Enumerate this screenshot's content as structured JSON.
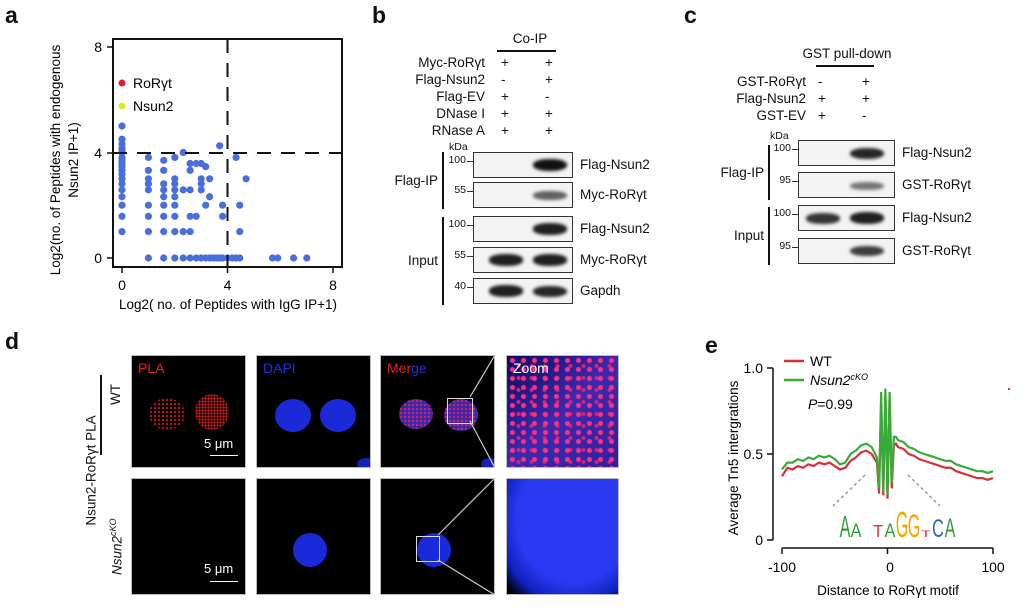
{
  "panels": {
    "a": "a",
    "b": "b",
    "c": "c",
    "d": "d",
    "e": "e"
  },
  "chart_data": [
    {
      "type": "scatter",
      "panel": "a",
      "xlabel": "Log2( no. of Peptides with IgG IP+1)",
      "ylabel_line1": "Log2(no. of Peptides with endogenous",
      "ylabel_line2": "Nsun2 IP+1)",
      "xlim": [
        0,
        8
      ],
      "ylim": [
        0,
        8
      ],
      "xticks": [
        "0",
        "4",
        "8"
      ],
      "yticks": [
        "0",
        "4",
        "8"
      ],
      "thresholds": {
        "x": 4,
        "y": 4
      },
      "legend": [
        {
          "label": "RoRγt",
          "color": "#e0202a"
        },
        {
          "label": "Nsun2",
          "color": "#e6e632"
        }
      ],
      "point_color": "#4a6fdc",
      "points": [
        [
          0,
          1
        ],
        [
          0,
          1.58
        ],
        [
          0,
          2
        ],
        [
          0,
          2.32
        ],
        [
          0,
          2.58
        ],
        [
          0,
          2.81
        ],
        [
          0,
          3
        ],
        [
          0,
          3.17
        ],
        [
          0,
          3.32
        ],
        [
          0,
          3.46
        ],
        [
          0,
          3.58
        ],
        [
          0,
          3.7
        ],
        [
          0,
          3.81
        ],
        [
          0,
          4
        ],
        [
          0,
          4.09
        ],
        [
          0,
          4.17
        ],
        [
          0,
          4.32
        ],
        [
          0,
          4.5
        ],
        [
          0,
          5
        ],
        [
          1,
          0
        ],
        [
          1,
          1
        ],
        [
          1,
          1.58
        ],
        [
          1,
          2
        ],
        [
          1,
          2.58
        ],
        [
          1,
          2.81
        ],
        [
          1,
          3
        ],
        [
          1,
          3.32
        ],
        [
          1,
          3.81
        ],
        [
          1.58,
          0
        ],
        [
          1.58,
          1
        ],
        [
          1.58,
          1.58
        ],
        [
          1.58,
          2
        ],
        [
          1.58,
          2.32
        ],
        [
          1.58,
          2.58
        ],
        [
          1.58,
          2.81
        ],
        [
          1.58,
          3.32
        ],
        [
          1.58,
          3.7
        ],
        [
          2,
          0
        ],
        [
          2,
          1
        ],
        [
          2,
          1.58
        ],
        [
          2,
          2
        ],
        [
          2,
          2.32
        ],
        [
          2,
          2.58
        ],
        [
          2,
          2.81
        ],
        [
          2,
          3
        ],
        [
          2,
          3.81
        ],
        [
          2.32,
          0
        ],
        [
          2.32,
          1
        ],
        [
          2.32,
          2.58
        ],
        [
          2.32,
          4
        ],
        [
          2.58,
          0
        ],
        [
          2.58,
          1
        ],
        [
          2.58,
          1.58
        ],
        [
          2.58,
          2.58
        ],
        [
          2.58,
          3.32
        ],
        [
          2.58,
          3.58
        ],
        [
          2.81,
          0
        ],
        [
          2.81,
          1.58
        ],
        [
          2.81,
          3.58
        ],
        [
          3,
          0
        ],
        [
          3,
          2.58
        ],
        [
          3,
          2.81
        ],
        [
          3,
          3
        ],
        [
          3,
          3.58
        ],
        [
          3.17,
          0
        ],
        [
          3.17,
          2
        ],
        [
          3.17,
          3.46
        ],
        [
          3.32,
          0
        ],
        [
          3.32,
          2.32
        ],
        [
          3.32,
          3
        ],
        [
          3.46,
          0
        ],
        [
          3.58,
          0
        ],
        [
          3.7,
          0
        ],
        [
          3.7,
          4.25
        ],
        [
          3.81,
          0
        ],
        [
          3.81,
          1.58
        ],
        [
          3.81,
          2
        ],
        [
          4,
          0
        ],
        [
          4.17,
          0
        ],
        [
          4.32,
          0
        ],
        [
          4.32,
          3.81
        ],
        [
          4.46,
          0
        ],
        [
          4.46,
          1
        ],
        [
          4.46,
          2
        ],
        [
          4.7,
          3
        ],
        [
          5.7,
          0
        ],
        [
          5.9,
          0
        ],
        [
          6.5,
          0
        ],
        [
          7,
          0
        ]
      ]
    },
    {
      "type": "line",
      "panel": "e",
      "xlabel": "Distance to RoRγt motif",
      "ylabel": "Average Tn5 intergrations",
      "xlim": [
        -100,
        100
      ],
      "ylim": [
        0,
        1
      ],
      "xticks": [
        "-100",
        "0",
        "100"
      ],
      "yticks": [
        "0",
        "0.5",
        "1.0"
      ],
      "annotation": {
        "p_label": "P",
        "p_value": "=0.99"
      },
      "motif": {
        "letters": [
          "A",
          "A",
          "T",
          "A",
          "G",
          "G",
          "T",
          "C",
          "A"
        ],
        "colors": [
          "#2a9d3a",
          "#2a9d3a",
          "#e0303a",
          "#2a9d3a",
          "#f2a800",
          "#f2a800",
          "#e0303a",
          "#2a5fc0",
          "#2a9d3a"
        ]
      },
      "x": [
        -100,
        -95,
        -90,
        -85,
        -80,
        -75,
        -70,
        -65,
        -60,
        -55,
        -50,
        -45,
        -40,
        -35,
        -30,
        -25,
        -20,
        -15,
        -10,
        -8,
        -6,
        -4,
        -2,
        0,
        2,
        4,
        6,
        8,
        10,
        15,
        20,
        25,
        30,
        35,
        40,
        45,
        50,
        55,
        60,
        65,
        70,
        75,
        80,
        85,
        90,
        95,
        100
      ],
      "series": [
        {
          "name": "WT",
          "label": "WT",
          "color": "#d7303a",
          "values": [
            0.37,
            0.42,
            0.41,
            0.43,
            0.42,
            0.44,
            0.43,
            0.45,
            0.44,
            0.45,
            0.43,
            0.41,
            0.42,
            0.46,
            0.48,
            0.51,
            0.52,
            0.5,
            0.45,
            0.27,
            0.8,
            0.26,
            0.85,
            0.24,
            0.82,
            0.3,
            0.55,
            0.56,
            0.54,
            0.53,
            0.5,
            0.49,
            0.47,
            0.46,
            0.45,
            0.44,
            0.43,
            0.42,
            0.42,
            0.4,
            0.39,
            0.38,
            0.37,
            0.36,
            0.36,
            0.35,
            0.36
          ]
        },
        {
          "name": "Nsun2cKO",
          "label": "Nsun2",
          "label_sup": "cKO",
          "color": "#3aaa3a",
          "values": [
            0.41,
            0.45,
            0.45,
            0.47,
            0.46,
            0.48,
            0.47,
            0.49,
            0.48,
            0.49,
            0.47,
            0.44,
            0.45,
            0.5,
            0.52,
            0.55,
            0.56,
            0.54,
            0.48,
            0.3,
            0.86,
            0.28,
            0.88,
            0.26,
            0.86,
            0.33,
            0.6,
            0.6,
            0.58,
            0.57,
            0.54,
            0.53,
            0.51,
            0.5,
            0.49,
            0.48,
            0.47,
            0.46,
            0.46,
            0.44,
            0.43,
            0.42,
            0.41,
            0.4,
            0.4,
            0.39,
            0.4
          ]
        }
      ]
    }
  ],
  "panel_b": {
    "header": "Co-IP",
    "conditions": [
      {
        "label": "Myc-RoRγt",
        "lanes": [
          "+",
          "+"
        ]
      },
      {
        "label": "Flag-Nsun2",
        "lanes": [
          "-",
          "+"
        ]
      },
      {
        "label": "Flag-EV",
        "lanes": [
          "+",
          "-"
        ]
      },
      {
        "label": "DNase I",
        "lanes": [
          "+",
          "+"
        ]
      },
      {
        "label": "RNase A",
        "lanes": [
          "+",
          "+"
        ]
      }
    ],
    "kda": "kDa",
    "group_ip": "Flag-IP",
    "group_input": "Input",
    "blots": [
      {
        "marker": "100",
        "label": "Flag-Nsun2",
        "bands": [
          0,
          1
        ]
      },
      {
        "marker": "55",
        "label": "Myc-RoRγt",
        "bands": [
          0,
          0.45
        ]
      },
      {
        "marker": "100",
        "label": "Flag-Nsun2",
        "bands": [
          0,
          0.9
        ]
      },
      {
        "marker": "55",
        "label": "Myc-RoRγt",
        "bands": [
          0.9,
          0.9
        ]
      },
      {
        "marker": "40",
        "label": "Gapdh",
        "bands": [
          0.9,
          0.85
        ]
      }
    ]
  },
  "panel_c": {
    "header": "GST pull-down",
    "conditions": [
      {
        "label": "GST-RoRγt",
        "lanes": [
          "-",
          "+"
        ]
      },
      {
        "label": "Flag-Nsun2",
        "lanes": [
          "+",
          "+"
        ]
      },
      {
        "label": "GST-EV",
        "lanes": [
          "+",
          "-"
        ]
      }
    ],
    "kda": "kDa",
    "group_ip": "Flag-IP",
    "group_input": "Input",
    "blots": [
      {
        "marker": "100",
        "label": "Flag-Nsun2",
        "bands": [
          0,
          0.85
        ]
      },
      {
        "marker": "95",
        "label": "GST-RoRγt",
        "bands": [
          0,
          0.3
        ]
      },
      {
        "marker": "100",
        "label": "Flag-Nsun2",
        "bands": [
          0.75,
          0.9
        ]
      },
      {
        "marker": "95",
        "label": "GST-RoRγt",
        "bands": [
          0,
          0.7
        ]
      }
    ]
  },
  "panel_d": {
    "row_title": "Nsun2-RoRγt PLA",
    "rows": [
      {
        "label": "WT"
      },
      {
        "label": "Nsun2",
        "label_sup": "cKO"
      }
    ],
    "channels": {
      "pla": "PLA",
      "dapi": "DAPI",
      "merge_a": "Mer",
      "merge_b": "ge",
      "zoom": "Zoom"
    },
    "scale_bar": "5 μm",
    "colors": {
      "pla": "#e02020",
      "dapi": "#2030e0"
    }
  }
}
